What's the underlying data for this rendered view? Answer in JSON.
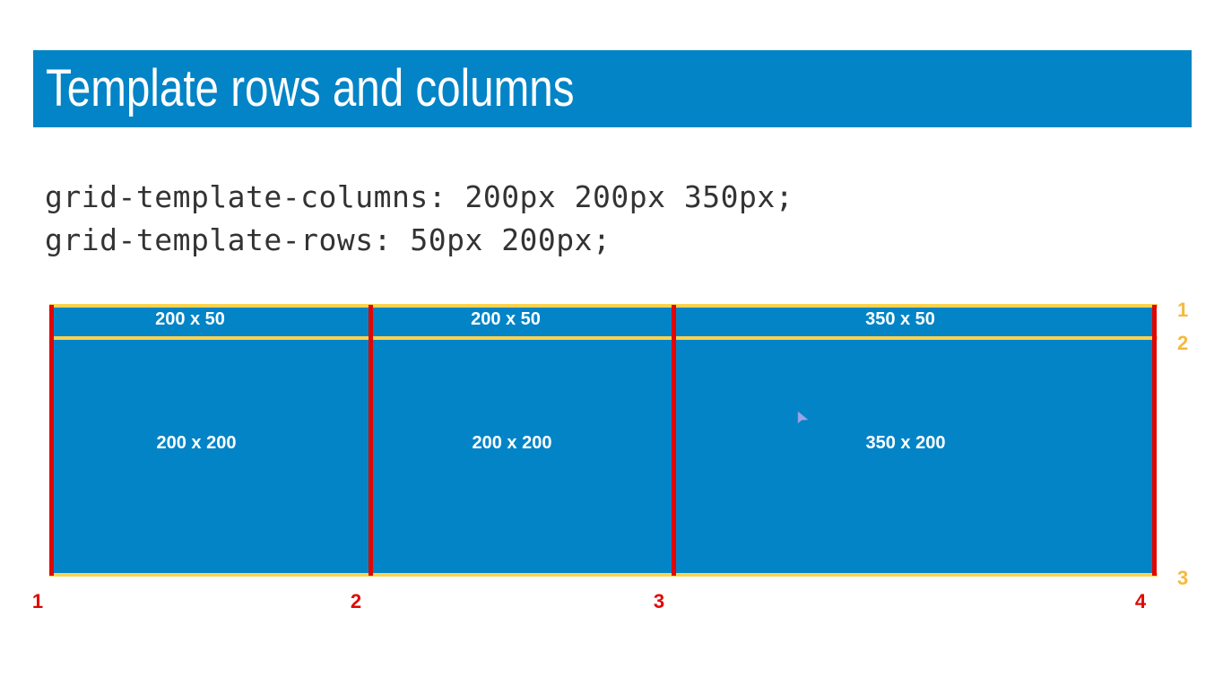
{
  "header": {
    "title": "Template rows and columns"
  },
  "code": {
    "line1": "grid-template-columns: 200px 200px 350px;",
    "line2": "grid-template-rows: 50px 200px;"
  },
  "grid": {
    "cells": [
      [
        "200 x 50",
        "200 x 50",
        "350 x 50"
      ],
      [
        "200 x 200",
        "200 x 200",
        "350 x 200"
      ]
    ],
    "column_line_numbers": [
      "1",
      "2",
      "3",
      "4"
    ],
    "row_line_numbers": [
      "1",
      "2",
      "3"
    ]
  },
  "colors": {
    "title_bar": "#0284c7",
    "grid_fill": "#0284c7",
    "column_lines": "#e10600",
    "row_lines": "#fcd34d",
    "row_numbers": "#f6b93b"
  },
  "icons": {
    "cursor": "pointer-cursor-icon"
  }
}
